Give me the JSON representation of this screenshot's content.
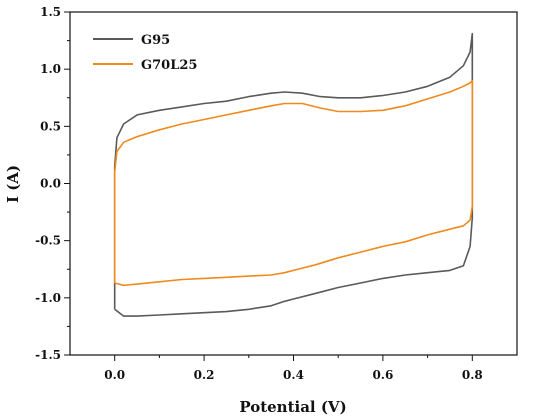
{
  "chart_data": {
    "type": "line",
    "xlabel": "Potential (V)",
    "ylabel": "I (A)",
    "xlim": [
      -0.1,
      0.9
    ],
    "ylim": [
      -1.5,
      1.5
    ],
    "xticks": [
      "0.0",
      "0.2",
      "0.4",
      "0.6",
      "0.8"
    ],
    "xtick_values": [
      0.0,
      0.2,
      0.4,
      0.6,
      0.8
    ],
    "yticks": [
      "-1.5",
      "-1.0",
      "-0.5",
      "0.0",
      "0.5",
      "1.0",
      "1.5"
    ],
    "ytick_values": [
      -1.5,
      -1.0,
      -0.5,
      0.0,
      0.5,
      1.0,
      1.5
    ],
    "legend_position": "top-left",
    "grid": false,
    "series": [
      {
        "name": "G95",
        "color": "#5a5a5a",
        "x": [
          0.0,
          0.0,
          0.005,
          0.02,
          0.05,
          0.1,
          0.15,
          0.2,
          0.25,
          0.3,
          0.35,
          0.38,
          0.42,
          0.46,
          0.5,
          0.55,
          0.6,
          0.65,
          0.7,
          0.75,
          0.78,
          0.795,
          0.8,
          0.8,
          0.795,
          0.78,
          0.75,
          0.7,
          0.65,
          0.6,
          0.55,
          0.5,
          0.45,
          0.4,
          0.38,
          0.35,
          0.3,
          0.25,
          0.2,
          0.15,
          0.1,
          0.05,
          0.02,
          0.0
        ],
        "y": [
          -1.1,
          0.15,
          0.4,
          0.52,
          0.6,
          0.64,
          0.67,
          0.7,
          0.72,
          0.76,
          0.79,
          0.8,
          0.79,
          0.76,
          0.75,
          0.75,
          0.77,
          0.8,
          0.85,
          0.93,
          1.03,
          1.15,
          1.31,
          -0.3,
          -0.55,
          -0.72,
          -0.76,
          -0.78,
          -0.8,
          -0.83,
          -0.87,
          -0.91,
          -0.96,
          -1.01,
          -1.03,
          -1.07,
          -1.1,
          -1.12,
          -1.13,
          -1.14,
          -1.15,
          -1.16,
          -1.16,
          -1.1
        ]
      },
      {
        "name": "G70L25",
        "color": "#f08a1c",
        "x": [
          0.0,
          0.0,
          0.005,
          0.02,
          0.05,
          0.1,
          0.15,
          0.2,
          0.25,
          0.3,
          0.35,
          0.38,
          0.42,
          0.46,
          0.5,
          0.55,
          0.6,
          0.65,
          0.7,
          0.75,
          0.78,
          0.795,
          0.8,
          0.8,
          0.795,
          0.78,
          0.75,
          0.7,
          0.65,
          0.6,
          0.55,
          0.5,
          0.45,
          0.4,
          0.38,
          0.35,
          0.3,
          0.25,
          0.2,
          0.15,
          0.1,
          0.05,
          0.02,
          0.0
        ],
        "y": [
          -0.87,
          0.1,
          0.28,
          0.36,
          0.41,
          0.47,
          0.52,
          0.56,
          0.6,
          0.64,
          0.68,
          0.7,
          0.7,
          0.66,
          0.63,
          0.63,
          0.64,
          0.68,
          0.74,
          0.8,
          0.85,
          0.88,
          0.9,
          -0.2,
          -0.32,
          -0.37,
          -0.4,
          -0.45,
          -0.51,
          -0.55,
          -0.6,
          -0.65,
          -0.71,
          -0.76,
          -0.78,
          -0.8,
          -0.81,
          -0.82,
          -0.83,
          -0.84,
          -0.86,
          -0.88,
          -0.89,
          -0.87
        ]
      }
    ]
  }
}
